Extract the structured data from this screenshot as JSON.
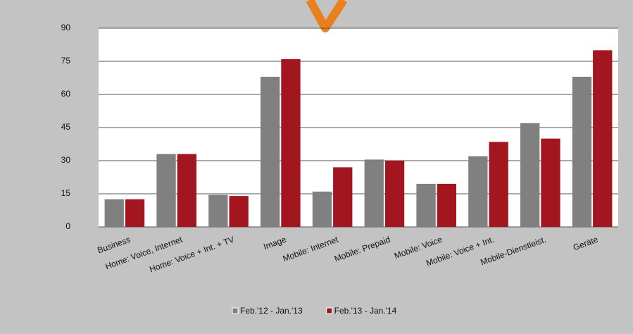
{
  "chart_data": {
    "type": "bar",
    "categories": [
      "Business",
      "Home: Voice, Internet",
      "Home: Voice + Int. + TV",
      "Image",
      "Mobile: Internet",
      "Mobile: Prepaid",
      "Mobile: Voice",
      "Mobile: Voice + Int.",
      "Mobile-Dienstleist.",
      "Geräte"
    ],
    "series": [
      {
        "name": "Feb.'12 - Jan.'13",
        "color": "#808080",
        "values": [
          12.5,
          33,
          14.5,
          68,
          16,
          30.5,
          19.5,
          32,
          47,
          68
        ]
      },
      {
        "name": "Feb.'13 - Jan.'14",
        "color": "#a3161f",
        "values": [
          12.5,
          33,
          14,
          76,
          27,
          30,
          19.5,
          38.5,
          40,
          80
        ]
      }
    ],
    "ylim": [
      0,
      90
    ],
    "yticks": [
      0,
      15,
      30,
      45,
      60,
      75,
      90
    ],
    "grid": true
  }
}
